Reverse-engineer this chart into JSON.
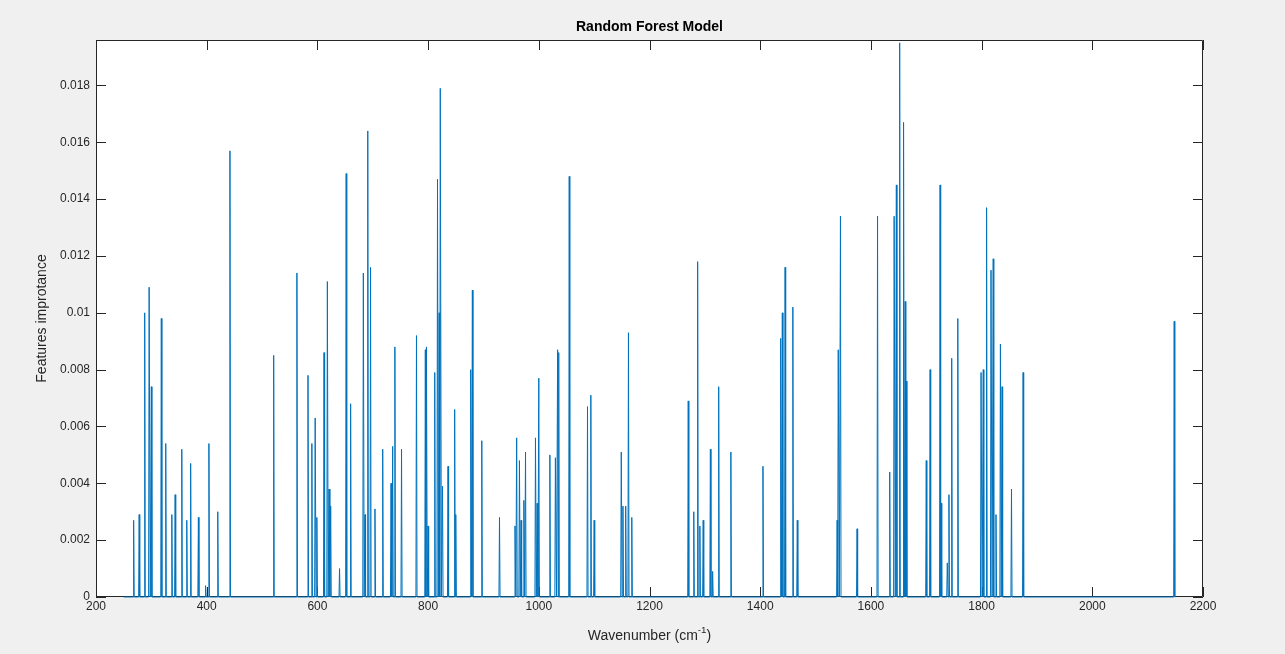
{
  "chart_data": {
    "type": "line",
    "title": "Random Forest Model",
    "xlabel": "Wavenumber (cm$^{-1}$)",
    "ylabel": "Features improtance",
    "color": "#0072bd",
    "xlim": [
      200,
      2200
    ],
    "xticks": [
      200,
      400,
      600,
      800,
      1000,
      1200,
      1400,
      1600,
      1800,
      2000,
      2200
    ],
    "ylim": [
      0,
      0.0196
    ],
    "yticks": [
      0,
      0.002,
      0.004,
      0.006,
      0.008,
      0.01,
      0.012,
      0.014,
      0.016,
      0.018
    ],
    "x": [
      250,
      267,
      268,
      269,
      277,
      278,
      279,
      287,
      288,
      289,
      295,
      296,
      298,
      300,
      301,
      317,
      318,
      319,
      325,
      326,
      327,
      336,
      337,
      338,
      342,
      343,
      344,
      354,
      355,
      356,
      363,
      364,
      365,
      370,
      371,
      372,
      384,
      385,
      386,
      397,
      398,
      399,
      403,
      404,
      405,
      419,
      420,
      421,
      441,
      442,
      443,
      520,
      521,
      522,
      562,
      563,
      564,
      582,
      583,
      584,
      589,
      590,
      591,
      595,
      596,
      597.5,
      599,
      600,
      611,
      612,
      613,
      617,
      618,
      619.5,
      621,
      622.5,
      624,
      625,
      639,
      640,
      641,
      651,
      652,
      653,
      659,
      660,
      661,
      682,
      683,
      684.5,
      686,
      687,
      690,
      691,
      692,
      695,
      696,
      697,
      703,
      704,
      705,
      717,
      718,
      719,
      732,
      733,
      734.5,
      736,
      737,
      739,
      740,
      741,
      751,
      752,
      753,
      778,
      779,
      780,
      794,
      795,
      796,
      797,
      798.5,
      800,
      801,
      811,
      812,
      813,
      816,
      817,
      818.5,
      820,
      821,
      822,
      824,
      826,
      827,
      835,
      836,
      837,
      847,
      848,
      849,
      850,
      851,
      876,
      877,
      878.5,
      880,
      881,
      896,
      897,
      898,
      928,
      929,
      930,
      956,
      957,
      958.5,
      960,
      961,
      964,
      965,
      966.5,
      968,
      969,
      972,
      973,
      974.5,
      976,
      977,
      993,
      994,
      995.5,
      997,
      998.5,
      1000,
      1001,
      1019,
      1020,
      1021,
      1029,
      1030,
      1032,
      1034,
      1035,
      1036,
      1037,
      1054,
      1055,
      1056,
      1087,
      1088,
      1089,
      1093,
      1094,
      1095,
      1099,
      1100,
      1101,
      1148,
      1149,
      1150.5,
      1152,
      1153,
      1156,
      1157,
      1158,
      1161,
      1162,
      1163,
      1167,
      1168,
      1169,
      1269,
      1270,
      1271,
      1279,
      1280,
      1281,
      1286,
      1287,
      1288,
      1290,
      1291,
      1292,
      1296,
      1297,
      1298,
      1309,
      1310,
      1311,
      1313,
      1314,
      1315,
      1324,
      1325,
      1326,
      1346,
      1347,
      1348,
      1404,
      1405,
      1406,
      1436,
      1437,
      1438.5,
      1440,
      1441,
      1444,
      1445,
      1446,
      1458,
      1459,
      1460,
      1466,
      1467,
      1468,
      1538,
      1539,
      1540,
      1541,
      1543,
      1545,
      1546,
      1574,
      1575,
      1576,
      1611,
      1612,
      1613,
      1633,
      1634,
      1635,
      1641,
      1642,
      1644,
      1646,
      1647,
      1651,
      1652,
      1653,
      1658,
      1659,
      1660.5,
      1662,
      1663,
      1664,
      1665,
      1699,
      1700,
      1701,
      1706,
      1707,
      1708,
      1724,
      1725,
      1726,
      1727,
      1728,
      1737,
      1738,
      1739.5,
      1741,
      1742,
      1745,
      1746,
      1747,
      1756,
      1757,
      1758,
      1798,
      1799,
      1801,
      1803,
      1804,
      1808,
      1809,
      1810,
      1816,
      1817,
      1819,
      1821,
      1822,
      1825,
      1826,
      1827,
      1833,
      1834,
      1835.5,
      1837,
      1838,
      1853,
      1854,
      1855,
      1874,
      1875,
      1876,
      2147,
      2148,
      2149,
      2150
    ],
    "values": [
      0,
      0,
      0.0027,
      0,
      0,
      0.0029,
      0,
      0,
      0.01,
      0,
      0,
      0.0109,
      0,
      0.0074,
      0,
      0,
      0.0098,
      0,
      0,
      0.0054,
      0,
      0,
      0.0029,
      0,
      0,
      0.0036,
      0,
      0,
      0.0052,
      0,
      0,
      0.0027,
      0,
      0,
      0.0047,
      0,
      0,
      0.0028,
      0,
      0,
      0.0004,
      0,
      0,
      0.0054,
      0,
      0,
      0.003,
      0,
      0,
      0.0157,
      0,
      0,
      0.0085,
      0,
      0,
      0.0114,
      0,
      0,
      0.0078,
      0,
      0,
      0.0054,
      0,
      0,
      0.0063,
      0,
      0.0028,
      0,
      0,
      0.0086,
      0,
      0,
      0.0111,
      0,
      0.0038,
      0,
      0.0032,
      0,
      0,
      0.001,
      0,
      0,
      0.0149,
      0,
      0,
      0.0068,
      0,
      0,
      0.0114,
      0,
      0.0029,
      0,
      0,
      0.0164,
      0,
      0,
      0.0116,
      0,
      0,
      0.0031,
      0,
      0,
      0.0052,
      0,
      0,
      0.004,
      0,
      0.0053,
      0,
      0,
      0.0088,
      0,
      0,
      0.0052,
      0,
      0,
      0.0092,
      0,
      0,
      0.0087,
      0,
      0.0088,
      0,
      0.0025,
      0,
      0,
      0.0079,
      0,
      0,
      0.0147,
      0,
      0.01,
      0,
      0.0179,
      0,
      0.0039,
      0,
      0,
      0.0046,
      0,
      0,
      0.0066,
      0,
      0.0029,
      0,
      0,
      0.008,
      0,
      0.0108,
      0,
      0,
      0.0055,
      0,
      0,
      0.0028,
      0,
      0,
      0.0025,
      0,
      0.0056,
      0,
      0,
      0.0048,
      0,
      0.0027,
      0,
      0,
      0.0034,
      0,
      0.0051,
      0,
      0,
      0.0056,
      0,
      0.0033,
      0,
      0.0077,
      0,
      0,
      0.005,
      0,
      0,
      0.0049,
      0,
      0.0087,
      0,
      0.0086,
      0,
      0,
      0.0148,
      0,
      0,
      0.0067,
      0,
      0,
      0.0071,
      0,
      0,
      0.0027,
      0,
      0,
      0.0051,
      0,
      0.0032,
      0,
      0,
      0.0032,
      0,
      0,
      0.0093,
      0,
      0,
      0.0028,
      0,
      0,
      0.0069,
      0,
      0,
      0.003,
      0,
      0,
      0.0118,
      0,
      0,
      0.0025,
      0,
      0,
      0.0027,
      0,
      0,
      0.0052,
      0,
      0,
      0.0009,
      0,
      0,
      0.0074,
      0,
      0,
      0.0051,
      0,
      0,
      0.0046,
      0,
      0,
      0.0091,
      0,
      0.01,
      0,
      0,
      0.0116,
      0,
      0,
      0.0102,
      0,
      0,
      0.0027,
      0,
      0,
      0.0027,
      0,
      0.0087,
      0,
      0.0134,
      0,
      0,
      0.0024,
      0,
      0,
      0.0134,
      0,
      0,
      0.0044,
      0,
      0,
      0.0134,
      0,
      0.0145,
      0,
      0,
      0.0195,
      0,
      0,
      0.0167,
      0,
      0.0104,
      0,
      0.0076,
      0,
      0,
      0.0048,
      0,
      0,
      0.008,
      0,
      0,
      0.0145,
      0,
      0.0033,
      0,
      0,
      0.0012,
      0,
      0.0036,
      0,
      0,
      0.0084,
      0,
      0,
      0.0098,
      0,
      0,
      0.0079,
      0,
      0.008,
      0,
      0,
      0.0137,
      0,
      0,
      0.0115,
      0,
      0.0119,
      0,
      0,
      0.0029,
      0,
      0,
      0.0089,
      0,
      0.0074,
      0,
      0,
      0.0038,
      0,
      0,
      0.0079,
      0,
      0,
      0.0097,
      0,
      0
    ]
  }
}
